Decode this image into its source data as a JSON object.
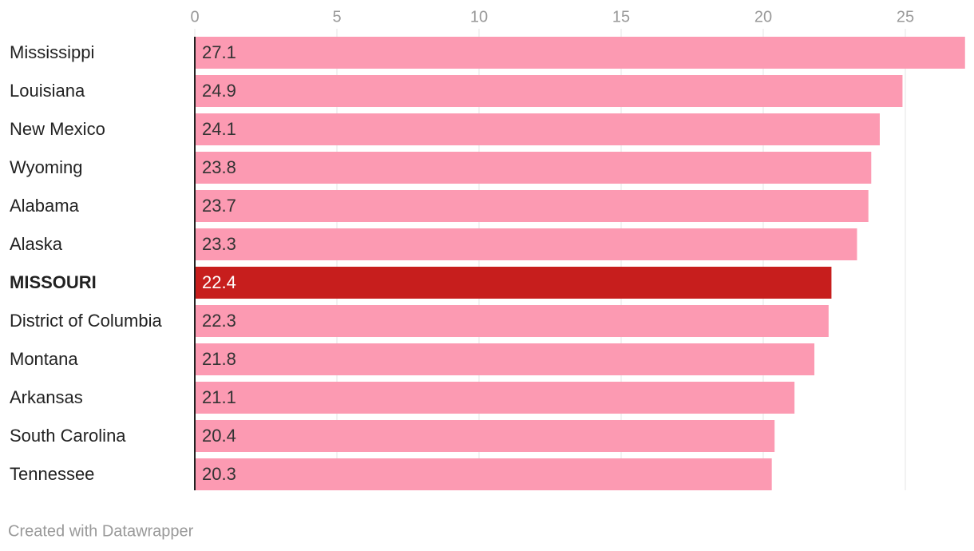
{
  "chart_data": {
    "type": "bar",
    "orientation": "horizontal",
    "categories": [
      "Mississippi",
      "Louisiana",
      "New Mexico",
      "Wyoming",
      "Alabama",
      "Alaska",
      "MISSOURI",
      "District of Columbia",
      "Montana",
      "Arkansas",
      "South Carolina",
      "Tennessee"
    ],
    "values": [
      27.1,
      24.9,
      24.1,
      23.8,
      23.7,
      23.3,
      22.4,
      22.3,
      21.8,
      21.1,
      20.4,
      20.3
    ],
    "color": "#fc9ab2",
    "colors": [
      "#fc9ab2",
      "#fc9ab2",
      "#fc9ab2",
      "#fc9ab2",
      "#fc9ab2",
      "#fc9ab2",
      "#c71e1d",
      "#fc9ab2",
      "#fc9ab2",
      "#fc9ab2",
      "#fc9ab2",
      "#fc9ab2"
    ],
    "xlim": [
      0,
      27.1
    ],
    "xticks": [
      0,
      5,
      10,
      15,
      20,
      25
    ],
    "grid": true,
    "credit": "Created with Datawrapper"
  }
}
